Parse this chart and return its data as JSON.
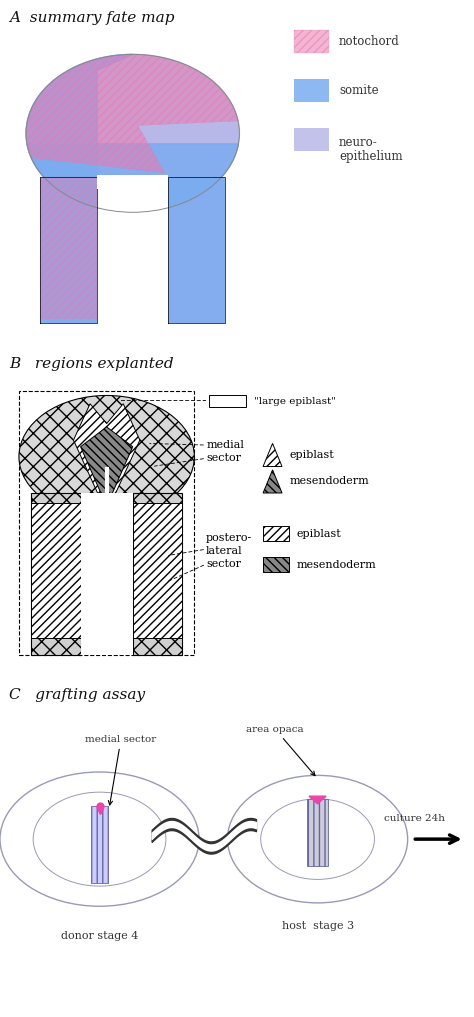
{
  "panel_A_title": "A  summary fate map",
  "panel_B_title": "B   regions explanted",
  "panel_C_title": "C   grafting assay",
  "notochord_color": "#e87ab0",
  "somite_color": "#7aacf0",
  "neuro_color": "#b8b8e8",
  "bg_color": "#ffffff",
  "text_color": "#111111",
  "legend_notochord": "notochord",
  "legend_somite": "somite",
  "legend_neuro1": "neuro-",
  "legend_neuro2": "epithelium",
  "legend_large_ep": "\"large epiblast\"",
  "legend_medial": "medial",
  "legend_sector": "sector",
  "legend_postero1": "postero-",
  "legend_postero2": "lateral",
  "legend_postero3": "sector",
  "legend_epiblast": "epiblast",
  "legend_mesendo": "mesendoderm",
  "legend_medial_sector": "medial sector",
  "legend_area_opaca": "area opaca",
  "legend_donor": "donor stage 4",
  "legend_host": "host  stage 3",
  "legend_culture": "culture 24h"
}
